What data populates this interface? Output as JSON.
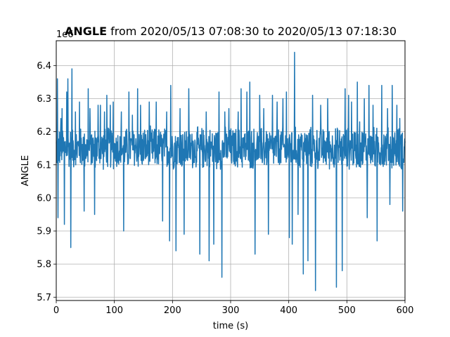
{
  "chart_data": {
    "type": "line",
    "title_bold": "ANGLE",
    "title_rest": " from 2020/05/13 07:08:30 to 2020/05/13 07:18:30",
    "xlabel": "time (s)",
    "ylabel": "ANGLE",
    "offset_label": "1e6",
    "xlim": [
      0,
      600
    ],
    "ylim": [
      5.69,
      6.475
    ],
    "x_ticks": [
      0,
      100,
      200,
      300,
      400,
      500,
      600
    ],
    "x_tick_labels": [
      "0",
      "100",
      "200",
      "300",
      "400",
      "500",
      "600"
    ],
    "y_ticks": [
      5.7,
      5.8,
      5.9,
      6.0,
      6.1,
      6.2,
      6.3,
      6.4
    ],
    "y_tick_labels": [
      "5.7",
      "5.8",
      "5.9",
      "6.0",
      "6.1",
      "6.2",
      "6.3",
      "6.4"
    ],
    "grid": true,
    "line_color": "#1f77b4",
    "series": [
      {
        "x_start": 0,
        "x_end": 600,
        "band_low": 6.08,
        "band_high": 6.22,
        "spikes": [
          [
            2,
            6.36
          ],
          [
            3,
            5.94
          ],
          [
            8,
            6.24
          ],
          [
            10,
            6.27
          ],
          [
            14,
            5.92
          ],
          [
            18,
            6.32
          ],
          [
            20,
            6.36
          ],
          [
            25,
            5.85
          ],
          [
            27,
            6.39
          ],
          [
            33,
            6.26
          ],
          [
            40,
            6.29
          ],
          [
            48,
            5.96
          ],
          [
            55,
            6.33
          ],
          [
            58,
            6.27
          ],
          [
            66,
            5.95
          ],
          [
            72,
            6.28
          ],
          [
            76,
            6.28
          ],
          [
            83,
            6.26
          ],
          [
            87,
            6.31
          ],
          [
            93,
            6.28
          ],
          [
            98,
            6.29
          ],
          [
            112,
            6.26
          ],
          [
            116,
            5.9
          ],
          [
            125,
            6.32
          ],
          [
            131,
            6.25
          ],
          [
            140,
            6.33
          ],
          [
            145,
            6.28
          ],
          [
            160,
            6.29
          ],
          [
            172,
            6.29
          ],
          [
            183,
            5.93
          ],
          [
            190,
            6.26
          ],
          [
            195,
            5.87
          ],
          [
            197,
            6.34
          ],
          [
            206,
            5.84
          ],
          [
            213,
            6.27
          ],
          [
            220,
            5.89
          ],
          [
            228,
            6.33
          ],
          [
            247,
            5.83
          ],
          [
            258,
            6.26
          ],
          [
            263,
            5.81
          ],
          [
            271,
            5.86
          ],
          [
            280,
            6.32
          ],
          [
            285,
            5.76
          ],
          [
            290,
            6.26
          ],
          [
            297,
            6.27
          ],
          [
            313,
            6.26
          ],
          [
            318,
            6.33
          ],
          [
            328,
            6.32
          ],
          [
            333,
            6.35
          ],
          [
            342,
            5.83
          ],
          [
            350,
            6.31
          ],
          [
            357,
            6.27
          ],
          [
            365,
            5.89
          ],
          [
            372,
            6.31
          ],
          [
            380,
            6.29
          ],
          [
            390,
            6.3
          ],
          [
            396,
            6.32
          ],
          [
            401,
            5.88
          ],
          [
            406,
            5.86
          ],
          [
            410,
            6.44
          ],
          [
            416,
            5.95
          ],
          [
            425,
            5.77
          ],
          [
            433,
            5.81
          ],
          [
            441,
            6.31
          ],
          [
            446,
            5.72
          ],
          [
            455,
            6.28
          ],
          [
            467,
            6.3
          ],
          [
            482,
            5.73
          ],
          [
            492,
            5.78
          ],
          [
            497,
            6.33
          ],
          [
            503,
            6.31
          ],
          [
            508,
            6.29
          ],
          [
            518,
            6.35
          ],
          [
            522,
            6.23
          ],
          [
            530,
            6.3
          ],
          [
            535,
            5.94
          ],
          [
            538,
            6.34
          ],
          [
            545,
            6.28
          ],
          [
            552,
            5.87
          ],
          [
            560,
            6.34
          ],
          [
            570,
            6.27
          ],
          [
            574,
            5.98
          ],
          [
            578,
            6.34
          ],
          [
            586,
            6.28
          ],
          [
            591,
            6.24
          ],
          [
            596,
            5.96
          ]
        ]
      }
    ]
  }
}
